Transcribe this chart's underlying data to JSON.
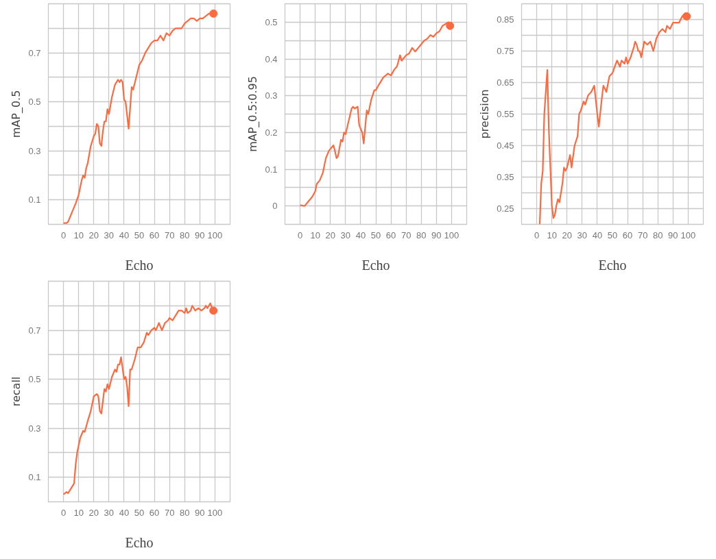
{
  "chart_data": [
    {
      "type": "line",
      "xlabel": "Echo",
      "ylabel": "mAP_0.5",
      "grid": true,
      "xlim": [
        -10,
        110
      ],
      "ylim": [
        0,
        0.9
      ],
      "xticks": [
        0,
        10,
        20,
        30,
        40,
        50,
        60,
        70,
        80,
        90,
        100
      ],
      "yticks": [
        0.1,
        {
          "value": 0.2,
          "label": null
        },
        0.3,
        {
          "value": 0.4,
          "label": null
        },
        0.5,
        {
          "value": 0.6,
          "label": null
        },
        0.7,
        {
          "value": 0.8,
          "label": null
        }
      ],
      "series": [
        {
          "color": "#fc6a3f",
          "x": [
            0,
            2,
            3,
            5,
            8,
            10,
            12,
            13,
            14,
            15,
            16,
            18,
            20,
            21,
            22,
            23,
            24,
            25,
            26,
            27,
            28,
            29,
            30,
            32,
            34,
            36,
            37,
            38,
            39,
            40,
            41,
            43,
            45,
            46,
            48,
            50,
            52,
            54,
            56,
            58,
            60,
            62,
            64,
            66,
            68,
            70,
            72,
            74,
            76,
            78,
            80,
            82,
            84,
            86,
            88,
            90,
            92,
            94,
            96,
            98,
            99
          ],
          "values": [
            0.005,
            0.005,
            0.01,
            0.04,
            0.085,
            0.12,
            0.18,
            0.2,
            0.19,
            0.23,
            0.25,
            0.32,
            0.36,
            0.37,
            0.41,
            0.4,
            0.33,
            0.32,
            0.38,
            0.42,
            0.42,
            0.47,
            0.45,
            0.52,
            0.57,
            0.59,
            0.58,
            0.59,
            0.58,
            0.51,
            0.5,
            0.39,
            0.56,
            0.55,
            0.6,
            0.65,
            0.67,
            0.7,
            0.72,
            0.74,
            0.75,
            0.75,
            0.77,
            0.75,
            0.78,
            0.77,
            0.79,
            0.8,
            0.8,
            0.8,
            0.82,
            0.83,
            0.84,
            0.84,
            0.83,
            0.84,
            0.84,
            0.85,
            0.86,
            0.86,
            0.86
          ]
        }
      ]
    },
    {
      "type": "line",
      "xlabel": "Echo",
      "ylabel": "mAP_0.5:0.95",
      "grid": true,
      "xlim": [
        -10,
        110
      ],
      "ylim": [
        -0.05,
        0.55
      ],
      "xticks": [
        0,
        10,
        20,
        30,
        40,
        50,
        60,
        70,
        80,
        90,
        100
      ],
      "yticks": [
        0,
        {
          "value": 0.05,
          "label": null
        },
        0.1,
        {
          "value": 0.15,
          "label": null
        },
        0.2,
        {
          "value": 0.25,
          "label": null
        },
        0.3,
        {
          "value": 0.35,
          "label": null
        },
        0.4,
        {
          "value": 0.45,
          "label": null
        },
        0.5
      ],
      "series": [
        {
          "color": "#fc6a3f",
          "x": [
            0,
            3,
            5,
            8,
            10,
            11,
            13,
            15,
            17,
            19,
            21,
            22,
            23,
            24,
            25,
            27,
            28,
            29,
            30,
            32,
            34,
            35,
            36,
            38,
            39,
            41,
            42,
            44,
            45,
            47,
            49,
            50,
            52,
            55,
            58,
            60,
            62,
            64,
            66,
            67,
            68,
            70,
            72,
            74,
            76,
            78,
            80,
            82,
            84,
            86,
            88,
            90,
            92,
            94,
            96,
            98,
            99
          ],
          "values": [
            0.002,
            0.0,
            0.01,
            0.025,
            0.04,
            0.06,
            0.07,
            0.09,
            0.13,
            0.15,
            0.16,
            0.165,
            0.15,
            0.13,
            0.135,
            0.18,
            0.175,
            0.2,
            0.195,
            0.23,
            0.265,
            0.27,
            0.265,
            0.27,
            0.22,
            0.2,
            0.17,
            0.26,
            0.25,
            0.29,
            0.315,
            0.315,
            0.33,
            0.35,
            0.36,
            0.355,
            0.37,
            0.38,
            0.41,
            0.395,
            0.4,
            0.41,
            0.415,
            0.43,
            0.42,
            0.43,
            0.44,
            0.45,
            0.455,
            0.465,
            0.46,
            0.47,
            0.475,
            0.49,
            0.495,
            0.5,
            0.49
          ]
        }
      ]
    },
    {
      "type": "line",
      "xlabel": "Echo",
      "ylabel": "precision",
      "grid": true,
      "xlim": [
        -10,
        110
      ],
      "ylim": [
        0.2,
        0.9
      ],
      "xticks": [
        0,
        10,
        20,
        30,
        40,
        50,
        60,
        70,
        80,
        90,
        100
      ],
      "yticks": [
        0.25,
        {
          "value": 0.3,
          "label": null
        },
        0.35,
        {
          "value": 0.4,
          "label": null
        },
        0.45,
        {
          "value": 0.5,
          "label": null
        },
        0.55,
        {
          "value": 0.6,
          "label": null
        },
        0.65,
        {
          "value": 0.7,
          "label": null
        },
        0.75,
        {
          "value": 0.8,
          "label": null
        },
        0.85
      ],
      "series": [
        {
          "color": "#fc6a3f",
          "x": [
            2,
            3,
            4,
            5,
            7,
            8,
            9,
            10,
            11,
            12,
            13,
            14,
            15,
            17,
            18,
            19,
            20,
            22,
            23,
            25,
            27,
            28,
            29,
            31,
            32,
            34,
            36,
            38,
            40,
            41,
            43,
            44,
            46,
            48,
            50,
            53,
            55,
            56,
            58,
            59,
            60,
            62,
            64,
            65,
            66,
            67,
            68,
            69,
            71,
            73,
            75,
            77,
            79,
            81,
            83,
            85,
            86,
            88,
            90,
            92,
            94,
            96,
            98,
            99
          ],
          "values": [
            0.2,
            0.33,
            0.37,
            0.55,
            0.69,
            0.5,
            0.38,
            0.26,
            0.22,
            0.23,
            0.26,
            0.28,
            0.27,
            0.33,
            0.38,
            0.37,
            0.38,
            0.42,
            0.38,
            0.45,
            0.48,
            0.55,
            0.56,
            0.59,
            0.58,
            0.61,
            0.62,
            0.64,
            0.55,
            0.51,
            0.6,
            0.64,
            0.62,
            0.67,
            0.68,
            0.72,
            0.7,
            0.72,
            0.71,
            0.73,
            0.71,
            0.73,
            0.76,
            0.78,
            0.77,
            0.75,
            0.75,
            0.73,
            0.78,
            0.77,
            0.78,
            0.75,
            0.79,
            0.81,
            0.82,
            0.81,
            0.83,
            0.82,
            0.84,
            0.84,
            0.84,
            0.86,
            0.87,
            0.86
          ]
        }
      ]
    },
    {
      "type": "line",
      "xlabel": "Echo",
      "ylabel": "recall",
      "grid": true,
      "xlim": [
        -10,
        110
      ],
      "ylim": [
        0,
        0.9
      ],
      "xticks": [
        0,
        10,
        20,
        30,
        40,
        50,
        60,
        70,
        80,
        90,
        100
      ],
      "yticks": [
        0.1,
        {
          "value": 0.2,
          "label": null
        },
        0.3,
        {
          "value": 0.4,
          "label": null
        },
        0.5,
        {
          "value": 0.6,
          "label": null
        },
        0.7,
        {
          "value": 0.8,
          "label": null
        }
      ],
      "series": [
        {
          "color": "#fc6a3f",
          "x": [
            0,
            2,
            3,
            5,
            7,
            8,
            9,
            11,
            13,
            14,
            16,
            18,
            20,
            22,
            23,
            24,
            25,
            27,
            28,
            29,
            30,
            32,
            34,
            35,
            36,
            37,
            38,
            40,
            41,
            42,
            43,
            44,
            45,
            47,
            49,
            51,
            53,
            55,
            56,
            58,
            60,
            61,
            63,
            65,
            67,
            69,
            70,
            72,
            74,
            76,
            78,
            80,
            81,
            82,
            84,
            85,
            87,
            89,
            91,
            93,
            94,
            95,
            97,
            98,
            99
          ],
          "values": [
            0.03,
            0.04,
            0.035,
            0.055,
            0.075,
            0.15,
            0.2,
            0.26,
            0.29,
            0.285,
            0.33,
            0.37,
            0.43,
            0.44,
            0.43,
            0.37,
            0.36,
            0.46,
            0.45,
            0.48,
            0.46,
            0.51,
            0.54,
            0.53,
            0.56,
            0.56,
            0.59,
            0.5,
            0.51,
            0.47,
            0.39,
            0.54,
            0.54,
            0.58,
            0.63,
            0.63,
            0.65,
            0.69,
            0.68,
            0.7,
            0.71,
            0.7,
            0.73,
            0.7,
            0.73,
            0.74,
            0.75,
            0.74,
            0.76,
            0.78,
            0.78,
            0.77,
            0.79,
            0.77,
            0.78,
            0.8,
            0.78,
            0.79,
            0.78,
            0.79,
            0.8,
            0.79,
            0.81,
            0.79,
            0.78
          ]
        }
      ]
    }
  ]
}
